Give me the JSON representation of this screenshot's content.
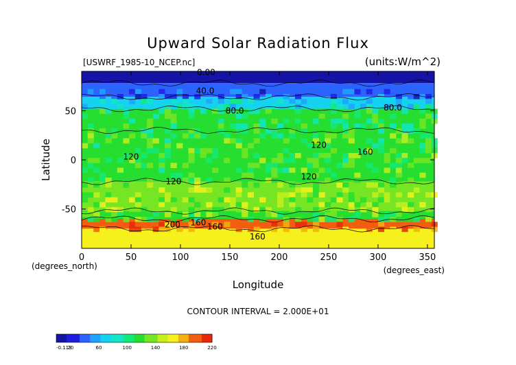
{
  "chart_data": {
    "type": "heatmap",
    "title": "Upward Solar Radiation Flux",
    "source_label": "[USWRF_1985-10_NCEP.nc]",
    "units_label": "(units:W/m^2)",
    "xlabel": "Longitude",
    "ylabel": "Latitude",
    "x_unit_label": "(degrees_east)",
    "y_unit_label": "(degrees_north)",
    "xlim": [
      0,
      357
    ],
    "ylim": [
      -90,
      90
    ],
    "x_ticks": [
      0,
      50,
      100,
      150,
      200,
      250,
      300,
      350
    ],
    "y_ticks": [
      50,
      0,
      -50
    ],
    "contour_interval_text": "CONTOUR INTERVAL = 2.000E+01",
    "contour_labels": [
      {
        "text": "0.00",
        "lon": 126,
        "lat": 89
      },
      {
        "text": "40.0",
        "lon": 125,
        "lat": 70
      },
      {
        "text": "80.0",
        "lon": 155,
        "lat": 50
      },
      {
        "text": "80.0",
        "lon": 315,
        "lat": 53
      },
      {
        "text": "120",
        "lon": 240,
        "lat": 15
      },
      {
        "text": "160",
        "lon": 287,
        "lat": 8
      },
      {
        "text": "120",
        "lon": 230,
        "lat": -17
      },
      {
        "text": "120",
        "lon": 93,
        "lat": -22
      },
      {
        "text": "120",
        "lon": 50,
        "lat": 3
      },
      {
        "text": "160",
        "lon": 118,
        "lat": -64
      },
      {
        "text": "160",
        "lon": 135,
        "lat": -68
      },
      {
        "text": "200",
        "lon": 92,
        "lat": -66
      },
      {
        "text": "160",
        "lon": 178,
        "lat": -78
      }
    ],
    "colorbar": {
      "min": -0.113,
      "max": 220,
      "tick_labels": [
        "-0.113",
        "20",
        "60",
        "100",
        "140",
        "180",
        "220"
      ],
      "colors": [
        "#1414a6",
        "#1e1ee0",
        "#2c63ff",
        "#1fa3ff",
        "#14d2f0",
        "#12e6c4",
        "#14ea78",
        "#26de30",
        "#76e624",
        "#c6ef1e",
        "#f6f11c",
        "#f2b10f",
        "#f25e0f",
        "#e52a0a"
      ]
    },
    "field_regions": [
      {
        "lat_range": [
          78,
          90
        ],
        "value": 5
      },
      {
        "lat_range": [
          64,
          78
        ],
        "value": 40
      },
      {
        "lat_range": [
          52,
          64
        ],
        "value": 75
      },
      {
        "lat_range": [
          30,
          52
        ],
        "value": 110
      },
      {
        "lat_range": [
          -22,
          30
        ],
        "value": 120
      },
      {
        "lat_range": [
          -52,
          -22
        ],
        "value": 140
      },
      {
        "lat_range": [
          -60,
          -52
        ],
        "value": 120
      },
      {
        "lat_range": [
          -70,
          -60
        ],
        "value": 195
      },
      {
        "lat_range": [
          -90,
          -70
        ],
        "value": 160
      }
    ]
  }
}
